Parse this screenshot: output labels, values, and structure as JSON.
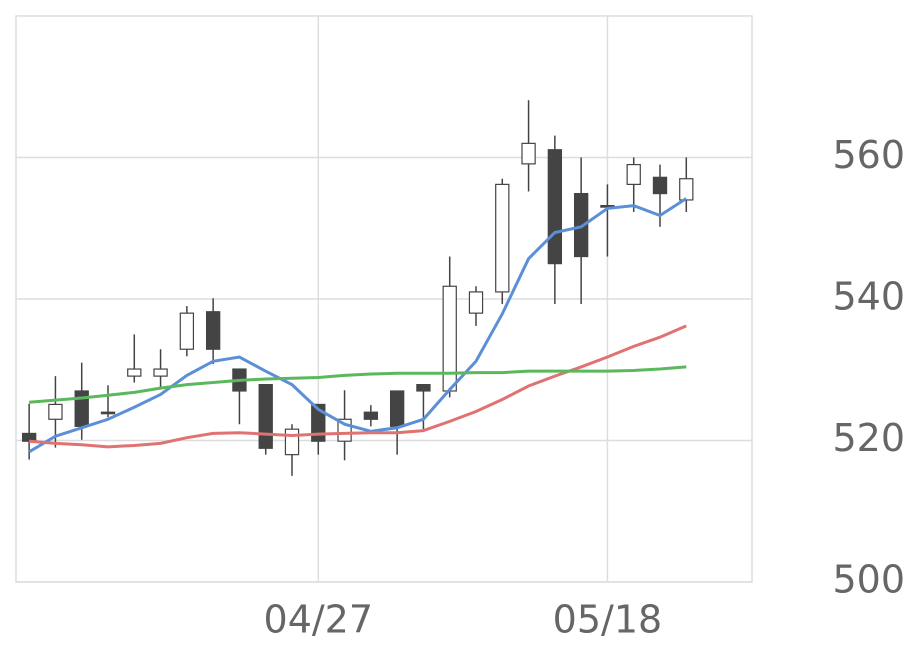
{
  "chart_data": {
    "type": "candlestick",
    "categories": [
      null,
      null,
      null,
      null,
      null,
      null,
      null,
      null,
      null,
      null,
      null,
      "04/27",
      null,
      null,
      null,
      null,
      null,
      null,
      null,
      null,
      null,
      null,
      "05/18",
      null,
      null,
      null
    ],
    "xlim": [
      -0.5,
      27.5
    ],
    "open": [
      521.0,
      523.0,
      527.0,
      524.0,
      529.1,
      529.1,
      532.9,
      538.2,
      530.1,
      527.9,
      518.0,
      525.1,
      519.9,
      524.0,
      527.0,
      527.9,
      527.0,
      538.0,
      541.0,
      559.1,
      561.1,
      554.9,
      553.2,
      556.2,
      557.2,
      554.0
    ],
    "high": [
      525.2,
      529.1,
      531.0,
      527.8,
      535.0,
      532.9,
      539.0,
      540.1,
      530.1,
      527.9,
      522.3,
      525.1,
      527.1,
      525.0,
      527.0,
      527.9,
      546.0,
      541.8,
      557.0,
      568.1,
      563.1,
      560.0,
      556.2,
      560.0,
      559.0,
      560.0
    ],
    "low": [
      517.3,
      519.0,
      520.1,
      523.3,
      528.2,
      527.4,
      531.9,
      530.8,
      522.3,
      518.0,
      515.0,
      518.0,
      517.2,
      522.0,
      518.0,
      521.6,
      526.1,
      536.2,
      539.3,
      555.2,
      539.3,
      539.3,
      546.0,
      552.3,
      550.2,
      552.3
    ],
    "close": [
      519.9,
      525.1,
      522.0,
      523.8,
      530.1,
      530.1,
      538.0,
      532.9,
      527.0,
      518.9,
      521.6,
      519.9,
      523.0,
      523.0,
      522.0,
      527.0,
      541.8,
      541.0,
      556.2,
      562.0,
      545.0,
      546.0,
      553.0,
      559.0,
      554.9,
      557.0
    ],
    "up_color": "#ffffff",
    "down_color": "#444444",
    "wick_color": "#444444",
    "series": [
      {
        "color": "#5b8fd6",
        "values": [
          518.4,
          520.6,
          521.8,
          523.0,
          524.7,
          526.5,
          529.2,
          531.2,
          531.8,
          529.8,
          527.9,
          524.4,
          522.3,
          521.3,
          521.8,
          523.0,
          527.2,
          531.2,
          537.9,
          545.7,
          549.4,
          550.2,
          552.8,
          553.2,
          551.8,
          554.2
        ]
      },
      {
        "color": "#e07272",
        "values": [
          519.9,
          519.6,
          519.4,
          519.1,
          519.3,
          519.6,
          520.4,
          521.0,
          521.1,
          520.9,
          520.7,
          520.9,
          521.0,
          521.1,
          521.1,
          521.4,
          522.7,
          524.1,
          525.8,
          527.7,
          529.1,
          530.4,
          531.8,
          533.3,
          534.6,
          536.2
        ]
      },
      {
        "color": "#5cb85c",
        "values": [
          525.4,
          525.7,
          526.0,
          526.4,
          526.8,
          527.4,
          527.9,
          528.2,
          528.5,
          528.7,
          528.8,
          528.9,
          529.2,
          529.4,
          529.5,
          529.5,
          529.5,
          529.6,
          529.6,
          529.8,
          529.8,
          529.8,
          529.8,
          529.9,
          530.1,
          530.4
        ]
      }
    ],
    "ylim": [
      500,
      580
    ],
    "yticks": [
      500,
      520,
      540,
      560
    ],
    "grid": true
  }
}
